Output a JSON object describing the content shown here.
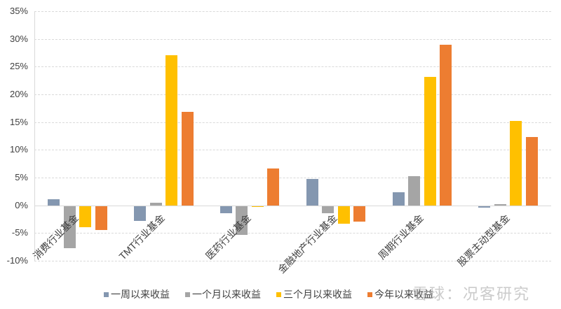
{
  "chart_data": {
    "type": "bar",
    "title": "",
    "xlabel": "",
    "ylabel": "",
    "ylim": [
      -10,
      35
    ],
    "yticks": [
      "35%",
      "30%",
      "25%",
      "20%",
      "15%",
      "10%",
      "5%",
      "0%",
      "-5%",
      "-10%"
    ],
    "grid": true,
    "legend_position": "bottom",
    "categories": [
      "消费行业基金",
      "TMT行业基金",
      "医药行业基金",
      "金融地产行业基金",
      "周期行业基金",
      "股票主动型基金"
    ],
    "series": [
      {
        "name": "一周以来收益",
        "color": "#8497b0",
        "values": [
          1.1,
          -2.8,
          -1.4,
          4.7,
          2.4,
          -0.4
        ]
      },
      {
        "name": "一个月以来收益",
        "color": "#a5a5a5",
        "values": [
          -7.7,
          0.5,
          -5.4,
          -1.4,
          5.2,
          0.2
        ]
      },
      {
        "name": "三个月以来收益",
        "color": "#ffc000",
        "values": [
          -4.0,
          27.1,
          -0.3,
          -3.3,
          23.2,
          15.2
        ]
      },
      {
        "name": "今年以来收益",
        "color": "#ed7d31",
        "values": [
          -4.5,
          16.9,
          6.7,
          -2.9,
          28.9,
          12.3
        ]
      }
    ]
  },
  "watermark": "雪球：况客研究"
}
